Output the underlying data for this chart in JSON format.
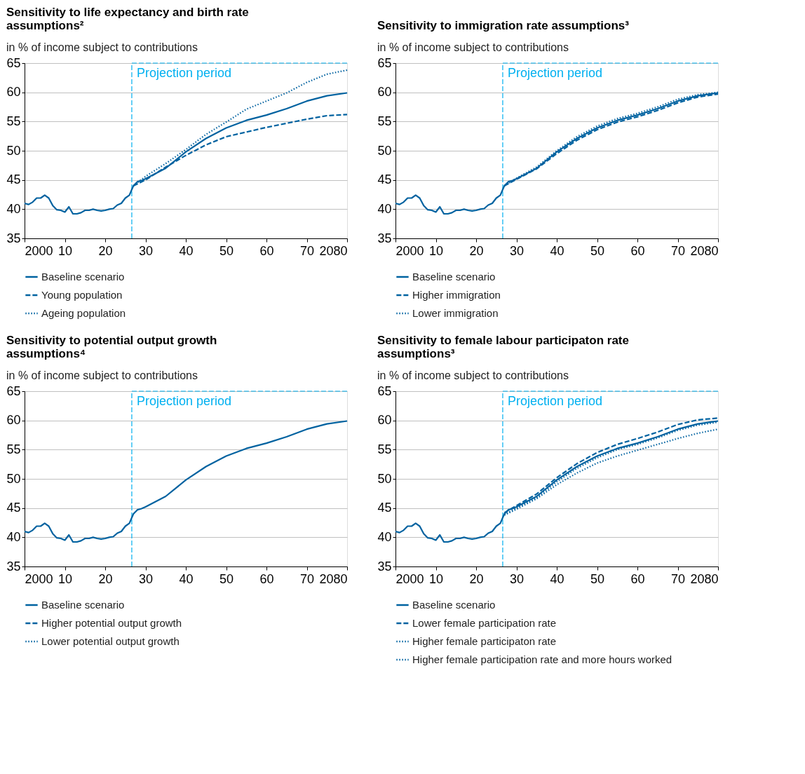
{
  "chart_data": [
    {
      "type": "line",
      "title": "Sensitivity to life expectancy and birth rate assumptions²",
      "ylabel": "in % of income subject to contributions",
      "xlim": [
        2000,
        2080
      ],
      "ylim": [
        35,
        65
      ],
      "yticks": [
        35,
        40,
        45,
        50,
        55,
        60,
        65
      ],
      "xticks": [
        {
          "value": 2000,
          "label": "2000"
        },
        {
          "value": 2010,
          "label": "10"
        },
        {
          "value": 2020,
          "label": "20"
        },
        {
          "value": 2030,
          "label": "30"
        },
        {
          "value": 2040,
          "label": "40"
        },
        {
          "value": 2050,
          "label": "50"
        },
        {
          "value": 2060,
          "label": "60"
        },
        {
          "value": 2070,
          "label": "70"
        },
        {
          "value": 2080,
          "label": "2080"
        }
      ],
      "grid": "y",
      "legend": "bottom",
      "marker": "none",
      "ref_lines": [
        {
          "axis": "x",
          "value": 2026.6,
          "label": "Projection period",
          "color": "#00b0f0",
          "line_style": "dashed"
        }
      ],
      "series": [
        {
          "name": "Baseline scenario",
          "color": "#0062a0",
          "line_style": "solid",
          "x": [
            2000,
            2001,
            2002,
            2003,
            2004,
            2005,
            2006,
            2007,
            2008,
            2009,
            2010,
            2011,
            2012,
            2013,
            2014,
            2015,
            2016,
            2017,
            2018,
            2019,
            2020,
            2021,
            2022,
            2023,
            2024,
            2025,
            2026,
            2027,
            2028,
            2029,
            2030,
            2035,
            2040,
            2045,
            2050,
            2055,
            2060,
            2065,
            2070,
            2075,
            2080
          ],
          "values": [
            41.0,
            40.8,
            41.2,
            41.9,
            41.9,
            42.4,
            41.9,
            40.6,
            39.9,
            39.8,
            39.5,
            40.4,
            39.2,
            39.2,
            39.4,
            39.8,
            39.8,
            40.0,
            39.8,
            39.7,
            39.8,
            40.0,
            40.1,
            40.7,
            41.0,
            41.9,
            42.4,
            44.0,
            44.7,
            44.9,
            45.2,
            47.0,
            49.8,
            52.1,
            53.9,
            55.2,
            56.1,
            57.2,
            58.5,
            59.4,
            59.9
          ]
        },
        {
          "name": "Young population",
          "color": "#0062a0",
          "line_style": "dashed",
          "x": [
            2027,
            2030,
            2035,
            2040,
            2045,
            2050,
            2055,
            2060,
            2065,
            2070,
            2075,
            2080
          ],
          "values": [
            44.0,
            45.0,
            47.2,
            49.2,
            51.0,
            52.4,
            53.2,
            54.0,
            54.7,
            55.4,
            56.0,
            56.2
          ]
        },
        {
          "name": "Ageing population",
          "color": "#0062a0",
          "line_style": "dotted",
          "x": [
            2027,
            2030,
            2035,
            2040,
            2045,
            2050,
            2055,
            2060,
            2065,
            2070,
            2075,
            2080
          ],
          "values": [
            44.0,
            45.6,
            47.8,
            50.2,
            52.8,
            54.9,
            57.1,
            58.5,
            59.9,
            61.7,
            63.1,
            63.8
          ]
        }
      ]
    },
    {
      "type": "line",
      "title": "Sensitivity to immigration rate assumptions³",
      "ylabel": "in % of income subject to contributions",
      "xlim": [
        2000,
        2080
      ],
      "ylim": [
        35,
        65
      ],
      "yticks": [
        35,
        40,
        45,
        50,
        55,
        60,
        65
      ],
      "xticks": [
        {
          "value": 2000,
          "label": "2000"
        },
        {
          "value": 2010,
          "label": "10"
        },
        {
          "value": 2020,
          "label": "20"
        },
        {
          "value": 2030,
          "label": "30"
        },
        {
          "value": 2040,
          "label": "40"
        },
        {
          "value": 2050,
          "label": "50"
        },
        {
          "value": 2060,
          "label": "60"
        },
        {
          "value": 2070,
          "label": "70"
        },
        {
          "value": 2080,
          "label": "2080"
        }
      ],
      "grid": "y",
      "legend": "bottom",
      "marker": "none",
      "ref_lines": [
        {
          "axis": "x",
          "value": 2026.6,
          "label": "Projection period",
          "color": "#00b0f0",
          "line_style": "dashed"
        }
      ],
      "series": [
        {
          "name": "Baseline scenario",
          "color": "#0062a0",
          "line_style": "solid",
          "x": [
            2000,
            2001,
            2002,
            2003,
            2004,
            2005,
            2006,
            2007,
            2008,
            2009,
            2010,
            2011,
            2012,
            2013,
            2014,
            2015,
            2016,
            2017,
            2018,
            2019,
            2020,
            2021,
            2022,
            2023,
            2024,
            2025,
            2026,
            2027,
            2028,
            2029,
            2030,
            2035,
            2040,
            2045,
            2050,
            2055,
            2060,
            2065,
            2070,
            2075,
            2080
          ],
          "values": [
            41.0,
            40.8,
            41.2,
            41.9,
            41.9,
            42.4,
            41.9,
            40.6,
            39.9,
            39.8,
            39.5,
            40.4,
            39.2,
            39.2,
            39.4,
            39.8,
            39.8,
            40.0,
            39.8,
            39.7,
            39.8,
            40.0,
            40.1,
            40.7,
            41.0,
            41.9,
            42.4,
            44.0,
            44.7,
            44.9,
            45.2,
            47.0,
            49.8,
            52.1,
            53.9,
            55.2,
            56.1,
            57.2,
            58.5,
            59.4,
            59.9
          ]
        },
        {
          "name": "Higher immigration",
          "color": "#0062a0",
          "line_style": "dashed",
          "x": [
            2027,
            2030,
            2035,
            2040,
            2045,
            2050,
            2055,
            2060,
            2065,
            2070,
            2075,
            2080
          ],
          "values": [
            44.0,
            45.1,
            46.9,
            49.5,
            51.8,
            53.6,
            54.9,
            55.8,
            56.9,
            58.2,
            59.2,
            59.7
          ]
        },
        {
          "name": "Lower immigration",
          "color": "#0062a0",
          "line_style": "dotted",
          "x": [
            2027,
            2030,
            2035,
            2040,
            2045,
            2050,
            2055,
            2060,
            2065,
            2070,
            2075,
            2080
          ],
          "values": [
            44.0,
            45.3,
            47.2,
            50.0,
            52.4,
            54.2,
            55.5,
            56.4,
            57.5,
            58.8,
            59.6,
            60.0
          ]
        }
      ]
    },
    {
      "type": "line",
      "title": "Sensitivity to potential output growth assumptions⁴",
      "ylabel": "in % of income subject to contributions",
      "xlim": [
        2000,
        2080
      ],
      "ylim": [
        35,
        65
      ],
      "yticks": [
        35,
        40,
        45,
        50,
        55,
        60,
        65
      ],
      "xticks": [
        {
          "value": 2000,
          "label": "2000"
        },
        {
          "value": 2010,
          "label": "10"
        },
        {
          "value": 2020,
          "label": "20"
        },
        {
          "value": 2030,
          "label": "30"
        },
        {
          "value": 2040,
          "label": "40"
        },
        {
          "value": 2050,
          "label": "50"
        },
        {
          "value": 2060,
          "label": "60"
        },
        {
          "value": 2070,
          "label": "70"
        },
        {
          "value": 2080,
          "label": "2080"
        }
      ],
      "grid": "y",
      "legend": "bottom",
      "marker": "none",
      "ref_lines": [
        {
          "axis": "x",
          "value": 2026.6,
          "label": "Projection period",
          "color": "#00b0f0",
          "line_style": "dashed"
        }
      ],
      "series": [
        {
          "name": "Baseline scenario",
          "color": "#0062a0",
          "line_style": "solid",
          "x": [
            2000,
            2001,
            2002,
            2003,
            2004,
            2005,
            2006,
            2007,
            2008,
            2009,
            2010,
            2011,
            2012,
            2013,
            2014,
            2015,
            2016,
            2017,
            2018,
            2019,
            2020,
            2021,
            2022,
            2023,
            2024,
            2025,
            2026,
            2027,
            2028,
            2029,
            2030,
            2035,
            2040,
            2045,
            2050,
            2055,
            2060,
            2065,
            2070,
            2075,
            2080
          ],
          "values": [
            41.0,
            40.8,
            41.2,
            41.9,
            41.9,
            42.4,
            41.9,
            40.6,
            39.9,
            39.8,
            39.5,
            40.4,
            39.2,
            39.2,
            39.4,
            39.8,
            39.8,
            40.0,
            39.8,
            39.7,
            39.8,
            40.0,
            40.1,
            40.7,
            41.0,
            41.9,
            42.4,
            44.0,
            44.7,
            44.9,
            45.2,
            47.0,
            49.8,
            52.1,
            53.9,
            55.2,
            56.1,
            57.2,
            58.5,
            59.4,
            59.9
          ]
        },
        {
          "name": "Higher potential output growth",
          "color": "#0062a0",
          "line_style": "dashed"
        },
        {
          "name": "Lower potential output growth",
          "color": "#0062a0",
          "line_style": "dotted"
        }
      ]
    },
    {
      "type": "line",
      "title": "Sensitivity to female labour participaton rate assumptions³",
      "ylabel": "in % of income subject to contributions",
      "xlim": [
        2000,
        2080
      ],
      "ylim": [
        35,
        65
      ],
      "yticks": [
        35,
        40,
        45,
        50,
        55,
        60,
        65
      ],
      "xticks": [
        {
          "value": 2000,
          "label": "2000"
        },
        {
          "value": 2010,
          "label": "10"
        },
        {
          "value": 2020,
          "label": "20"
        },
        {
          "value": 2030,
          "label": "30"
        },
        {
          "value": 2040,
          "label": "40"
        },
        {
          "value": 2050,
          "label": "50"
        },
        {
          "value": 2060,
          "label": "60"
        },
        {
          "value": 2070,
          "label": "70"
        },
        {
          "value": 2080,
          "label": "2080"
        }
      ],
      "grid": "y",
      "legend": "bottom",
      "marker": "none",
      "ref_lines": [
        {
          "axis": "x",
          "value": 2026.6,
          "label": "Projection period",
          "color": "#00b0f0",
          "line_style": "dashed"
        }
      ],
      "series": [
        {
          "name": "Baseline scenario",
          "color": "#0062a0",
          "line_style": "solid",
          "x": [
            2000,
            2001,
            2002,
            2003,
            2004,
            2005,
            2006,
            2007,
            2008,
            2009,
            2010,
            2011,
            2012,
            2013,
            2014,
            2015,
            2016,
            2017,
            2018,
            2019,
            2020,
            2021,
            2022,
            2023,
            2024,
            2025,
            2026,
            2027,
            2028,
            2029,
            2030,
            2035,
            2040,
            2045,
            2050,
            2055,
            2060,
            2065,
            2070,
            2075,
            2080
          ],
          "values": [
            41.0,
            40.8,
            41.2,
            41.9,
            41.9,
            42.4,
            41.9,
            40.6,
            39.9,
            39.8,
            39.5,
            40.4,
            39.2,
            39.2,
            39.4,
            39.8,
            39.8,
            40.0,
            39.8,
            39.7,
            39.8,
            40.0,
            40.1,
            40.7,
            41.0,
            41.9,
            42.4,
            44.0,
            44.7,
            44.9,
            45.2,
            47.0,
            49.8,
            52.1,
            53.9,
            55.2,
            56.1,
            57.2,
            58.5,
            59.4,
            59.9
          ]
        },
        {
          "name": "Lower female participation rate",
          "color": "#0062a0",
          "line_style": "dashed",
          "x": [
            2027,
            2030,
            2035,
            2040,
            2045,
            2050,
            2055,
            2060,
            2065,
            2070,
            2075,
            2080
          ],
          "values": [
            44.2,
            45.4,
            47.4,
            50.2,
            52.6,
            54.5,
            55.9,
            56.9,
            58.0,
            59.3,
            60.1,
            60.4
          ]
        },
        {
          "name": "Higher female participaton rate",
          "color": "#0062a0",
          "line_style": "dotted",
          "x": [
            2027,
            2030,
            2035,
            2040,
            2045,
            2050,
            2055,
            2060,
            2065,
            2070,
            2075,
            2080
          ],
          "values": [
            43.9,
            45.0,
            46.8,
            49.5,
            51.8,
            53.6,
            55.0,
            55.9,
            57.0,
            58.3,
            59.2,
            59.7
          ]
        },
        {
          "name": "Higher female participation rate and more hours worked",
          "color": "#0062a0",
          "line_style": "dotted",
          "x": [
            2027,
            2030,
            2035,
            2040,
            2045,
            2050,
            2055,
            2060,
            2065,
            2070,
            2075,
            2080
          ],
          "values": [
            43.8,
            44.8,
            46.6,
            49.0,
            51.0,
            52.7,
            53.9,
            54.9,
            55.9,
            56.9,
            57.8,
            58.5
          ]
        }
      ]
    }
  ]
}
